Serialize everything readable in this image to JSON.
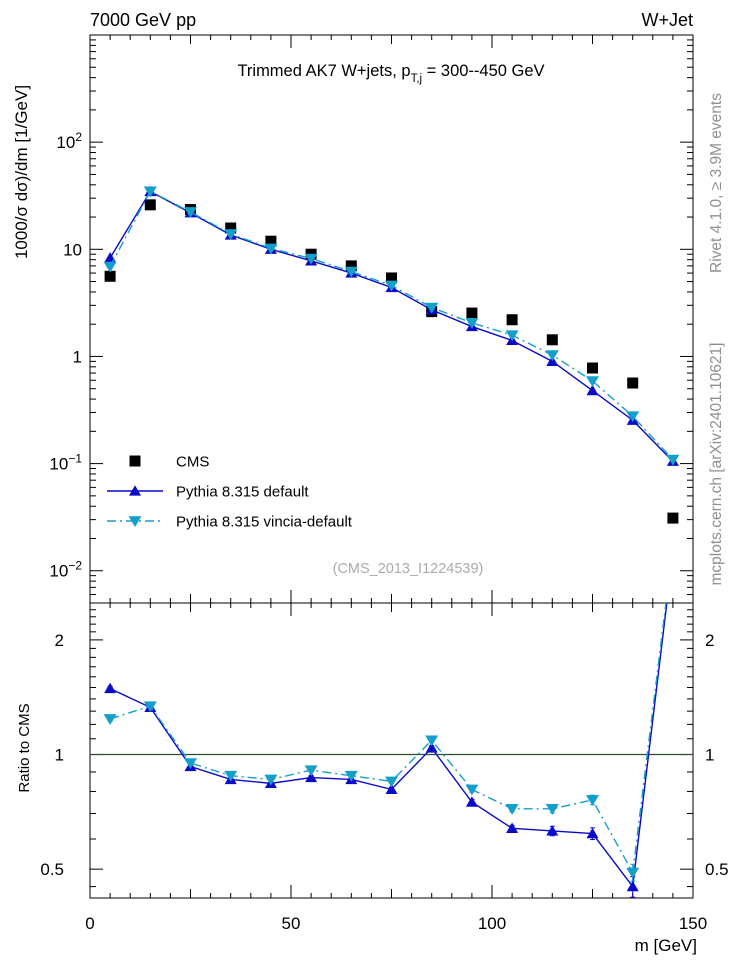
{
  "header": {
    "left": "7000 GeV pp",
    "right": "W+Jet"
  },
  "title": {
    "p1": "Trimmed AK7 W+jets, p",
    "sub": "T,j",
    "p2": " = 300--450 GeV"
  },
  "labels": {
    "main_y": "1000/σ  dσ)/dm [1/GeV]",
    "ratio_y": "Ratio to CMS",
    "x": "m [GeV]"
  },
  "side": {
    "top": "Rivet 4.1.0, ≥ 3.9M events",
    "bottom": "mcplots.cern.ch [arXiv:2401.10621]"
  },
  "watermark": "(CMS_2013_I1224539)",
  "colors": {
    "cms": "#000000",
    "pythia_default": "#0a0ac8",
    "pythia_vincia": "#149fca",
    "reference_line": "#2e4f2e",
    "side_text": "#8f8f8f",
    "watermark": "#ababab"
  },
  "axes": {
    "x_ticks": {
      "major": [
        0,
        50,
        100,
        150
      ],
      "labels": [
        "0",
        "50",
        "100",
        "150"
      ],
      "secondary": [
        25,
        75,
        125
      ],
      "minor_step": 5
    },
    "main_y_ticks": [
      {
        "v": 100,
        "base": "10",
        "sup": "2"
      },
      {
        "v": 10,
        "base": "10",
        "sup": ""
      },
      {
        "v": 1,
        "base": "1",
        "sup": ""
      },
      {
        "v": 0.1,
        "base": "10",
        "sup": "−1"
      },
      {
        "v": 0.01,
        "base": "10",
        "sup": "−2"
      }
    ],
    "ratio_y_ticks": [
      {
        "v": 2,
        "label": "2"
      },
      {
        "v": 1,
        "label": "1"
      },
      {
        "v": 0.5,
        "label": "0.5"
      }
    ],
    "ratio_y_minor": [
      0.45,
      0.6,
      0.7,
      0.8,
      0.9,
      1.1,
      1.2,
      1.3,
      1.4,
      1.5,
      1.6,
      1.7,
      1.8,
      1.9,
      2.1,
      2.2,
      2.3,
      2.4
    ]
  },
  "chart_data": [
    {
      "type": "line",
      "panel": "main",
      "title": "Trimmed AK7 W+jets, p_{T,j} = 300--450 GeV",
      "xlabel": "m [GeV]",
      "ylabel": "1000/σ dσ)/dm [1/GeV]",
      "yscale": "log",
      "xlim": [
        0,
        150
      ],
      "ylim": [
        0.005,
        1000
      ],
      "legend_position": "left-middle",
      "x": [
        5,
        15,
        25,
        35,
        45,
        55,
        65,
        75,
        85,
        95,
        105,
        115,
        125,
        135,
        145
      ],
      "series": [
        {
          "name": "CMS",
          "marker": "square",
          "color": "#000000",
          "line": "none",
          "err_frac": 0.09,
          "values": [
            5.6,
            26.0,
            23.5,
            15.8,
            11.9,
            9.0,
            7.0,
            5.4,
            2.62,
            2.54,
            2.2,
            1.43,
            0.78,
            0.565,
            0.031
          ]
        },
        {
          "name": "Pythia 8.315 default",
          "marker": "triangle-up",
          "color": "#0a0ac8",
          "line": "solid",
          "err_frac": 0.02,
          "values": [
            8.3,
            34.6,
            21.9,
            13.6,
            10.0,
            7.8,
            6.0,
            4.4,
            2.72,
            1.9,
            1.41,
            0.9,
            0.48,
            0.254,
            0.105
          ]
        },
        {
          "name": "Pythia 8.315 vincia-default",
          "marker": "triangle-down",
          "color": "#149fca",
          "line": "dashdot",
          "err_frac": 0.02,
          "values": [
            6.9,
            34.8,
            22.3,
            13.9,
            10.2,
            8.2,
            6.2,
            4.6,
            2.86,
            2.06,
            1.58,
            1.03,
            0.59,
            0.277,
            0.109
          ]
        }
      ]
    },
    {
      "type": "line",
      "panel": "ratio",
      "ylabel": "Ratio to CMS",
      "yscale": "log",
      "xlim": [
        0,
        150
      ],
      "ylim": [
        0.42,
        2.5
      ],
      "reference_line": 1,
      "x": [
        5,
        15,
        25,
        35,
        45,
        55,
        65,
        75,
        85,
        95,
        105,
        115,
        125,
        135,
        145
      ],
      "series": [
        {
          "name": "Pythia 8.315 default",
          "marker": "triangle-up",
          "color": "#0a0ac8",
          "line": "solid",
          "values": [
            1.49,
            1.33,
            0.93,
            0.86,
            0.84,
            0.87,
            0.86,
            0.81,
            1.04,
            0.75,
            0.64,
            0.63,
            0.62,
            0.45,
            3.39
          ],
          "err": [
            0.02,
            0.012,
            0.01,
            0.01,
            0.009,
            0.01,
            0.01,
            0.01,
            0.015,
            0.012,
            0.012,
            0.018,
            0.022,
            0.028,
            0.05
          ]
        },
        {
          "name": "Pythia 8.315 vincia-default",
          "marker": "triangle-down",
          "color": "#149fca",
          "line": "dashdot",
          "values": [
            1.24,
            1.34,
            0.95,
            0.88,
            0.86,
            0.91,
            0.88,
            0.85,
            1.09,
            0.81,
            0.72,
            0.72,
            0.76,
            0.49,
            3.52
          ],
          "err": [
            0.018,
            0.012,
            0.01,
            0.01,
            0.009,
            0.01,
            0.01,
            0.01,
            0.015,
            0.013,
            0.013,
            0.018,
            0.022,
            0.025,
            0.05
          ]
        }
      ]
    }
  ]
}
